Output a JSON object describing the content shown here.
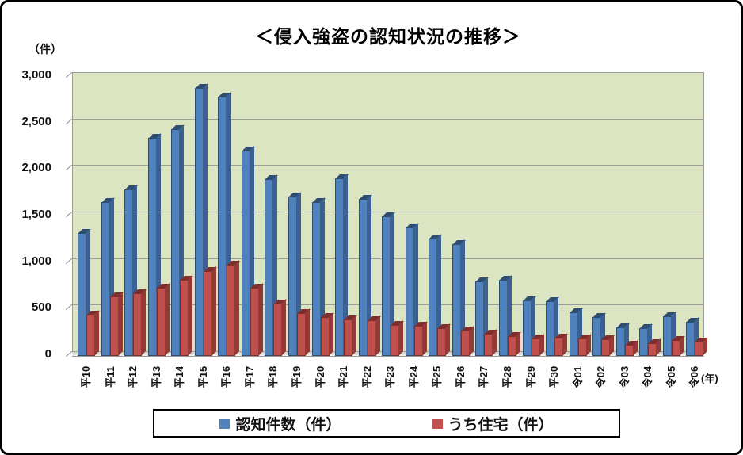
{
  "title": "＜侵入強盗の認知状況の推移＞",
  "y_axis": {
    "unit_label": "（件）",
    "tick_labels": [
      "0",
      "500",
      "1,000",
      "1,500",
      "2,000",
      "2,500",
      "3,000"
    ],
    "max": 3000,
    "step": 500
  },
  "x_axis": {
    "unit_label": "(年)"
  },
  "legend": {
    "items": [
      {
        "label": "認知件数（件）",
        "color": "#4F81BD"
      },
      {
        "label": "うち住宅（件）",
        "color": "#C0504D"
      }
    ]
  },
  "colors": {
    "plot_background": "#dbe5c1",
    "gridline": "#9b9b9b",
    "series1_front": "#4F81BD",
    "series1_top": "#2E4D71",
    "series1_side": "#3A6191",
    "series2_front": "#C0504D",
    "series2_top": "#7E2F2D",
    "series2_side": "#953936",
    "border": "#000000"
  },
  "chart_data": {
    "type": "bar",
    "title": "＜侵入強盗の認知状況の推移＞",
    "xlabel": "(年)",
    "ylabel": "（件）",
    "ylim": [
      0,
      3000
    ],
    "ystep": 500,
    "grid": true,
    "legend_position": "bottom",
    "categories": [
      "平10",
      "平11",
      "平12",
      "平13",
      "平14",
      "平15",
      "平16",
      "平17",
      "平18",
      "平19",
      "平20",
      "平21",
      "平22",
      "平23",
      "平24",
      "平25",
      "平26",
      "平27",
      "平28",
      "平29",
      "平30",
      "令01",
      "令02",
      "令03",
      "令04",
      "令05",
      "令06"
    ],
    "series": [
      {
        "name": "認知件数（件）",
        "color": "#4F81BD",
        "values": [
          1320,
          1650,
          1790,
          2340,
          2440,
          2880,
          2790,
          2210,
          1900,
          1710,
          1650,
          1910,
          1690,
          1500,
          1380,
          1260,
          1200,
          800,
          820,
          600,
          590,
          470,
          420,
          310,
          300,
          430,
          370
        ]
      },
      {
        "name": "うち住宅（件）",
        "color": "#C0504D",
        "values": [
          440,
          640,
          670,
          730,
          820,
          910,
          980,
          730,
          560,
          460,
          420,
          390,
          380,
          330,
          320,
          300,
          270,
          240,
          210,
          190,
          200,
          190,
          180,
          120,
          140,
          170,
          150
        ]
      }
    ]
  }
}
